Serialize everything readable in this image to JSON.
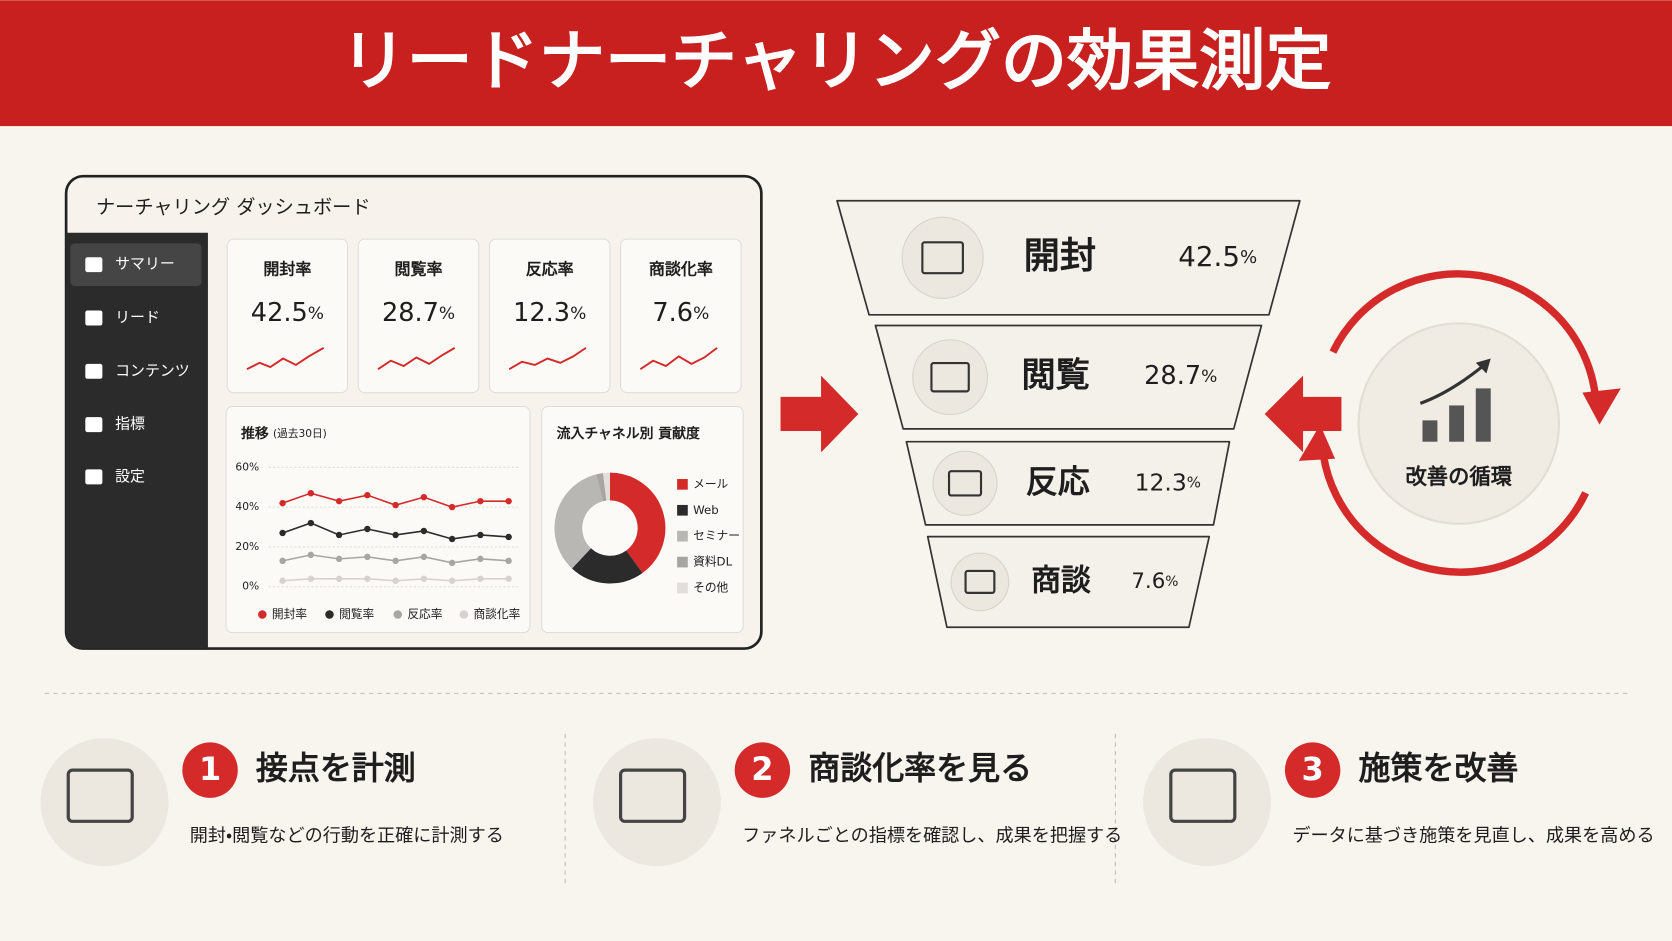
{
  "title": "リードナーチャリングの効果測定",
  "dashboard": {
    "title": "ナーチャリング ダッシュボード",
    "nav": [
      "サマリー",
      "リード",
      "コンテンツ",
      "指標",
      "設定"
    ],
    "kpis": [
      {
        "label": "開封率",
        "value": 42.5,
        "unit": "%"
      },
      {
        "label": "閲覧率",
        "value": 28.7,
        "unit": "%"
      },
      {
        "label": "反応率",
        "value": 12.3,
        "unit": "%"
      },
      {
        "label": "商談化率",
        "value": 7.6,
        "unit": "%"
      }
    ],
    "trend": {
      "type": "line",
      "title": "推移",
      "subtitle": "(過去30日)",
      "ylim": [
        0,
        60
      ],
      "yticks": [
        {
          "value": 0,
          "label": "0%"
        },
        {
          "value": 20,
          "label": "20%"
        },
        {
          "value": 40,
          "label": "40%"
        },
        {
          "value": 60,
          "label": "60%"
        }
      ],
      "grid": true,
      "series": [
        {
          "name": "開封率",
          "color": "#d42a2a",
          "values": [
            42,
            47,
            43,
            46,
            41,
            45,
            40,
            43,
            43
          ]
        },
        {
          "name": "閲覧率",
          "color": "#2b2b2b",
          "values": [
            27,
            32,
            26,
            29,
            26,
            28,
            24,
            26,
            25
          ]
        },
        {
          "name": "反応率",
          "color": "#a8a6a2",
          "values": [
            13,
            16,
            14,
            15,
            13,
            15,
            12,
            14,
            13
          ]
        },
        {
          "name": "商談化率",
          "color": "#d6d3ce",
          "values": [
            3,
            4,
            4,
            4,
            3,
            4,
            3,
            4,
            4
          ]
        }
      ]
    },
    "channels": {
      "type": "pie",
      "title": "流入チャネル別 貢献度",
      "series": [
        {
          "name": "メール",
          "color": "#d42a2a",
          "value": 40
        },
        {
          "name": "Web",
          "color": "#2b2b2b",
          "value": 22
        },
        {
          "name": "セミナー",
          "color": "#b9b7b3",
          "value": 34
        },
        {
          "name": "資料DL",
          "color": "#a8a6a2",
          "value": 2
        },
        {
          "name": "その他",
          "color": "#e2dfda",
          "value": 2
        }
      ]
    }
  },
  "funnel": [
    {
      "label": "開封",
      "value": 42.5,
      "unit": "%"
    },
    {
      "label": "閲覧",
      "value": 28.7,
      "unit": "%"
    },
    {
      "label": "反応",
      "value": 12.3,
      "unit": "%"
    },
    {
      "label": "商談",
      "value": 7.6,
      "unit": "%"
    }
  ],
  "cycle": "改善の循環",
  "steps": [
    {
      "number": 1,
      "title": "接点を計測",
      "text": "開封・閲覧などの行動を正確に計測する"
    },
    {
      "number": 2,
      "title": "商談化率を見る",
      "text": "ファネルごとの指標を確認し、成果を把握する"
    },
    {
      "number": 3,
      "title": "施策を改善",
      "text": "データに基づき施策を見直し、成果を高める"
    }
  ]
}
